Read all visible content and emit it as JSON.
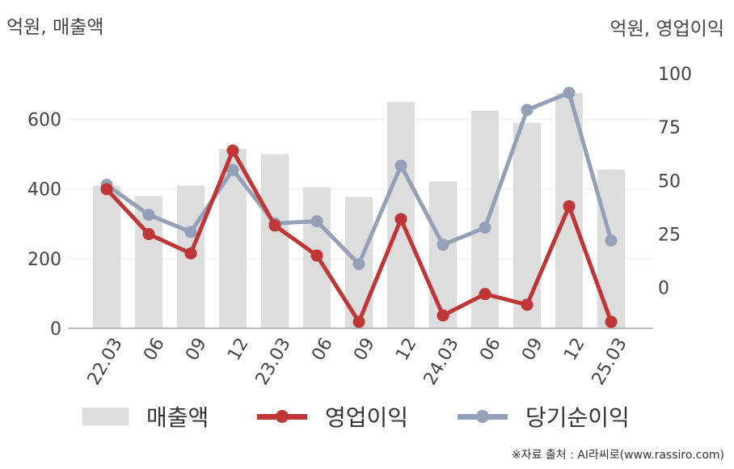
{
  "units": {
    "left": "억원, 매출액",
    "right": "억원, 영업이익"
  },
  "source": "※자료 출처 : AI라씨로(www.rassiro.com)",
  "chart_data": {
    "type": "bar+line",
    "categories": [
      "22.03",
      "06",
      "09",
      "12",
      "23.03",
      "06",
      "09",
      "12",
      "24.03",
      "06",
      "09",
      "12",
      "25.03"
    ],
    "y_left": {
      "ticks": [
        0,
        200,
        400,
        600
      ],
      "range": [
        0,
        750
      ]
    },
    "y_right": {
      "ticks": [
        0,
        25,
        50,
        75,
        100
      ],
      "range": [
        -19,
        103
      ]
    },
    "grid": true,
    "legend_position": "bottom",
    "series": [
      {
        "name": "매출액",
        "kind": "bar",
        "axis": "left",
        "color": "#dddddd",
        "values": [
          410,
          380,
          410,
          515,
          500,
          405,
          377,
          650,
          422,
          625,
          590,
          675,
          455
        ]
      },
      {
        "name": "영업이익",
        "kind": "line",
        "axis": "right",
        "color": "#c03535",
        "values": [
          46,
          25,
          16,
          64,
          29,
          15,
          -16,
          32,
          -13,
          -3,
          -8,
          38,
          -16
        ]
      },
      {
        "name": "당기순이익",
        "kind": "line",
        "axis": "right",
        "color": "#94a0b8",
        "values": [
          48,
          34,
          26,
          55,
          30,
          31,
          11,
          57,
          20,
          28,
          83,
          91,
          22
        ]
      }
    ]
  }
}
